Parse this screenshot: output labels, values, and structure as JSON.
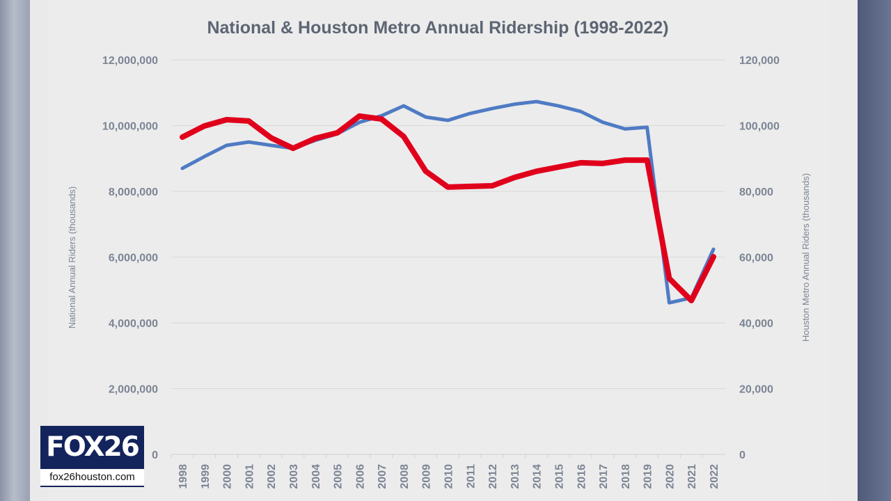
{
  "chart_data": {
    "type": "line",
    "title": "National & Houston Metro Annual Ridership (1998-2022)",
    "x": [
      1998,
      1999,
      2000,
      2001,
      2002,
      2003,
      2004,
      2005,
      2006,
      2007,
      2008,
      2009,
      2010,
      2011,
      2012,
      2013,
      2014,
      2015,
      2016,
      2017,
      2018,
      2019,
      2020,
      2021,
      2022
    ],
    "x_tick_labels": [
      "1998",
      "1999",
      "2000",
      "2001",
      "2002",
      "2003",
      "2004",
      "2005",
      "2006",
      "2007",
      "2008",
      "2009",
      "2010",
      "2011",
      "2012",
      "2013",
      "2014",
      "2015",
      "2016",
      "2017",
      "2018",
      "2019",
      "2020",
      "2021",
      "2022"
    ],
    "ylabel": "National Annual Riders (thousands)",
    "ylim": [
      0,
      12000000
    ],
    "y_tick_labels": [
      "0",
      "2,000,000",
      "4,000,000",
      "6,000,000",
      "8,000,000",
      "10,000,000",
      "12,000,000"
    ],
    "y2label": "Houston Metro Annual Riders (thousands)",
    "y2lim": [
      0,
      120000
    ],
    "y2_tick_labels": [
      "0",
      "20,000",
      "40,000",
      "60,000",
      "80,000",
      "100,000",
      "120,000"
    ],
    "grid": true,
    "series": [
      {
        "axis": "left",
        "color": "#4f7bc4",
        "values": [
          8700000,
          9060000,
          9400000,
          9500000,
          9400000,
          9310000,
          9550000,
          9750000,
          10100000,
          10300000,
          10600000,
          10260000,
          10160000,
          10370000,
          10520000,
          10650000,
          10730000,
          10600000,
          10430000,
          10100000,
          9900000,
          9950000,
          4610000,
          4760000,
          6240000
        ]
      },
      {
        "axis": "right",
        "color": "#e0001b",
        "values": [
          96500,
          99900,
          101800,
          101400,
          96300,
          93100,
          96100,
          97800,
          102900,
          102000,
          96700,
          86100,
          81300,
          81500,
          81700,
          84200,
          86100,
          87400,
          88700,
          88500,
          89500,
          89500,
          53500,
          46800,
          60100
        ]
      }
    ]
  },
  "logo": {
    "brand": "FOX26",
    "url": "fox26houston.com"
  }
}
